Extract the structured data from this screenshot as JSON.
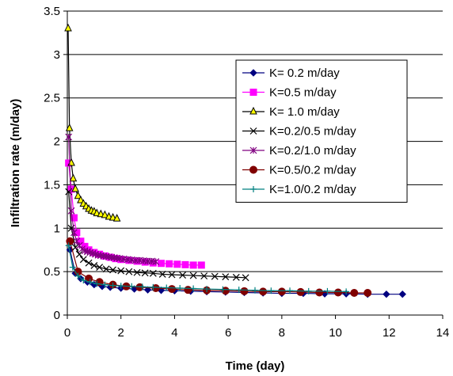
{
  "chart_data": {
    "type": "line",
    "xlabel": "Time (day)",
    "ylabel": "Infiltration rate (m/day)",
    "xlim": [
      0,
      14
    ],
    "ylim": [
      0,
      3.5
    ],
    "xticks": [
      "0",
      "2",
      "4",
      "6",
      "8",
      "10",
      "12",
      "14"
    ],
    "yticks": [
      "0",
      "0.5",
      "1",
      "1.5",
      "2",
      "2.5",
      "3",
      "3.5"
    ],
    "grid": "horizontal",
    "legend_position": "right",
    "series": [
      {
        "name": "K= 0.2 m/day",
        "color": "#000080",
        "marker": "diamond",
        "x": [
          0.1,
          0.3,
          0.5,
          0.75,
          1.0,
          1.3,
          1.6,
          2.0,
          2.5,
          3.0,
          3.5,
          4.0,
          4.6,
          5.2,
          5.9,
          6.6,
          7.3,
          8.0,
          8.8,
          9.6,
          10.4,
          11.2,
          11.9,
          12.5
        ],
        "y": [
          0.75,
          0.48,
          0.42,
          0.38,
          0.35,
          0.33,
          0.32,
          0.31,
          0.3,
          0.29,
          0.285,
          0.28,
          0.275,
          0.27,
          0.265,
          0.26,
          0.255,
          0.25,
          0.25,
          0.245,
          0.245,
          0.24,
          0.24,
          0.24
        ]
      },
      {
        "name": "K=0.5 m/day",
        "color": "#FF00FF",
        "marker": "square",
        "x": [
          0.05,
          0.15,
          0.25,
          0.35,
          0.5,
          0.65,
          0.8,
          1.0,
          1.2,
          1.4,
          1.6,
          1.8,
          2.0,
          2.3,
          2.6,
          2.9,
          3.2,
          3.5,
          3.8,
          4.1,
          4.4,
          4.7,
          5.0
        ],
        "y": [
          1.75,
          1.45,
          1.12,
          0.95,
          0.85,
          0.79,
          0.75,
          0.72,
          0.7,
          0.68,
          0.665,
          0.65,
          0.64,
          0.63,
          0.62,
          0.61,
          0.6,
          0.595,
          0.59,
          0.585,
          0.58,
          0.575,
          0.575
        ]
      },
      {
        "name": "K= 1.0 m/day",
        "color": "#000000",
        "fill": "#FFFF00",
        "marker": "triangle",
        "x": [
          0.03,
          0.08,
          0.15,
          0.22,
          0.3,
          0.4,
          0.5,
          0.6,
          0.7,
          0.8,
          0.9,
          1.0,
          1.1,
          1.25,
          1.4,
          1.55,
          1.7,
          1.85
        ],
        "y": [
          3.3,
          2.15,
          1.75,
          1.57,
          1.45,
          1.37,
          1.32,
          1.28,
          1.25,
          1.22,
          1.2,
          1.19,
          1.17,
          1.16,
          1.15,
          1.13,
          1.12,
          1.11
        ]
      },
      {
        "name": "K=0.2/0.5 m/day",
        "color": "#000000",
        "marker": "x",
        "x": [
          0.05,
          0.15,
          0.3,
          0.45,
          0.6,
          0.8,
          1.0,
          1.2,
          1.45,
          1.7,
          2.0,
          2.3,
          2.6,
          2.9,
          3.2,
          3.55,
          3.9,
          4.3,
          4.7,
          5.1,
          5.5,
          5.9,
          6.3,
          6.65
        ],
        "y": [
          1.42,
          1.0,
          0.78,
          0.7,
          0.64,
          0.6,
          0.57,
          0.55,
          0.53,
          0.52,
          0.51,
          0.5,
          0.49,
          0.485,
          0.48,
          0.47,
          0.465,
          0.46,
          0.455,
          0.45,
          0.445,
          0.44,
          0.435,
          0.43
        ]
      },
      {
        "name": "K=0.2/1.0 m/day",
        "color": "#800080",
        "marker": "asterisk",
        "x": [
          0.05,
          0.15,
          0.25,
          0.35,
          0.45,
          0.55,
          0.65,
          0.75,
          0.85,
          0.95,
          1.05,
          1.15,
          1.25,
          1.35,
          1.45,
          1.55,
          1.65,
          1.75,
          1.85,
          1.95,
          2.1,
          2.25,
          2.4,
          2.55,
          2.7,
          2.85,
          3.0,
          3.15,
          3.3
        ],
        "y": [
          2.05,
          1.2,
          0.95,
          0.85,
          0.8,
          0.76,
          0.74,
          0.73,
          0.72,
          0.71,
          0.7,
          0.69,
          0.685,
          0.68,
          0.675,
          0.67,
          0.665,
          0.66,
          0.655,
          0.65,
          0.645,
          0.64,
          0.635,
          0.63,
          0.63,
          0.625,
          0.62,
          0.62,
          0.615
        ]
      },
      {
        "name": "K=0.5/0.2 m/day",
        "color": "#800000",
        "marker": "circle",
        "x": [
          0.1,
          0.4,
          0.8,
          1.2,
          1.7,
          2.2,
          2.7,
          3.3,
          3.9,
          4.5,
          5.2,
          5.9,
          6.6,
          7.3,
          8.0,
          8.7,
          9.4,
          10.1,
          10.7,
          11.2
        ],
        "y": [
          0.85,
          0.5,
          0.42,
          0.38,
          0.35,
          0.33,
          0.32,
          0.31,
          0.3,
          0.29,
          0.285,
          0.28,
          0.275,
          0.27,
          0.27,
          0.265,
          0.26,
          0.26,
          0.255,
          0.255
        ]
      },
      {
        "name": "K=1.0/0.2 m/day",
        "color": "#008080",
        "marker": "plus",
        "x": [
          0.05,
          0.2,
          0.4,
          0.6,
          0.85,
          1.1,
          1.4,
          1.7,
          2.0,
          2.4,
          2.8,
          3.2,
          3.7,
          4.2,
          4.7,
          5.2,
          5.8,
          6.4,
          7.0,
          7.6,
          8.3,
          9.0,
          9.7,
          10.4
        ],
        "y": [
          0.8,
          0.55,
          0.45,
          0.4,
          0.38,
          0.36,
          0.35,
          0.34,
          0.335,
          0.33,
          0.325,
          0.32,
          0.315,
          0.31,
          0.305,
          0.3,
          0.295,
          0.29,
          0.285,
          0.28,
          0.28,
          0.275,
          0.275,
          0.27
        ]
      }
    ]
  }
}
